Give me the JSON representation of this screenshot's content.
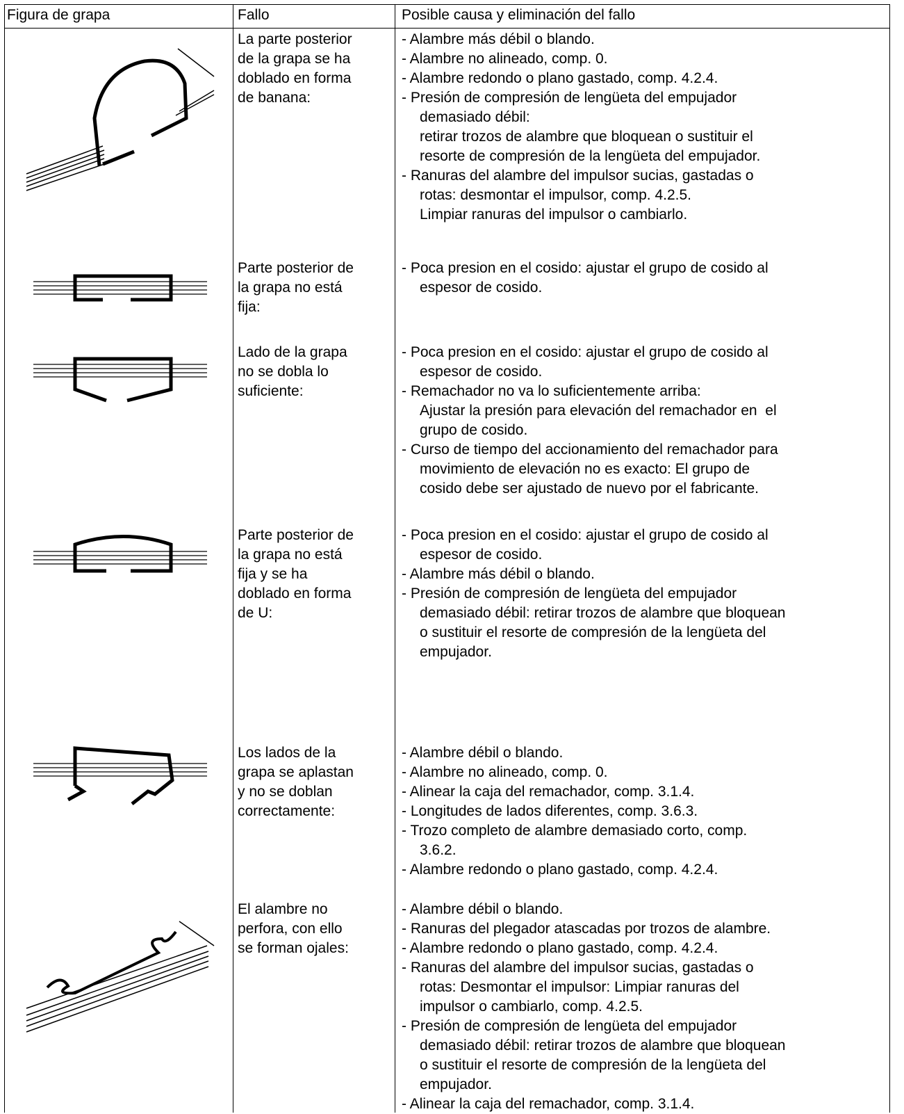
{
  "table": {
    "header": [
      "Figura de grapa",
      "Fallo",
      "Posible causa y eliminación del fallo"
    ],
    "rows": [
      {
        "fault": [
          "La parte posterior",
          "de la grapa se ha",
          "doblado en forma",
          "de banana:"
        ],
        "causes": [
          "- Alambre más débil o blando.",
          "- Alambre no alineado, comp. 0.",
          "- Alambre redondo o plano gastado, comp. 4.2.4.",
          "- Presión de compresión de lengüeta del empujador",
          "demasiado débil:",
          "retirar trozos de alambre que bloquean o sustituir el",
          "resorte de compresión de la lengüeta del empujador.",
          "- Ranuras del alambre del impulsor sucias, gastadas o",
          "rotas: desmontar el impulsor, comp. 4.2.5.",
          "Limpiar ranuras del impulsor o cambiarlo."
        ]
      },
      {
        "fault": [
          "Parte posterior de",
          "la grapa no está",
          "fija:"
        ],
        "causes": [
          "- Poca presion en el cosido: ajustar el grupo de cosido al",
          "espesor de cosido."
        ]
      },
      {
        "fault": [
          "Lado de la grapa",
          "no se dobla lo",
          "suficiente:"
        ],
        "causes": [
          "- Poca presion en el cosido: ajustar el grupo de cosido al",
          "espesor de cosido.",
          "- Remachador no va lo suficientemente arriba:",
          "Ajustar la presión para elevación del remachador en  el",
          "grupo de cosido.",
          "- Curso de tiempo del accionamiento del remachador para",
          "movimiento de elevación no es exacto: El grupo de",
          "cosido debe ser ajustado de nuevo por el fabricante."
        ]
      },
      {
        "fault": [
          "Parte posterior de",
          "la grapa no está",
          "fija y se ha",
          "doblado en forma",
          "de U:"
        ],
        "causes": [
          "- Poca presion en el cosido: ajustar el grupo de cosido al",
          "espesor de cosido.",
          "- Alambre más débil o blando.",
          "- Presión de compresión de lengüeta del empujador",
          "demasiado débil: retirar trozos de alambre que bloquean",
          "o sustituir el resorte de compresión de la lengüeta del",
          "empujador."
        ]
      },
      {
        "fault": [
          "Los lados de la",
          "grapa se aplastan",
          "y no se doblan",
          "correctamente:"
        ],
        "causes": [
          "- Alambre débil o blando.",
          "- Alambre no alineado, comp. 0.",
          "- Alinear la caja del remachador, comp. 3.1.4.",
          "- Longitudes de lados diferentes, comp. 3.6.3.",
          "- Trozo completo de alambre demasiado corto, comp.",
          "3.6.2.",
          "- Alambre redondo o plano gastado, comp. 4.2.4."
        ]
      },
      {
        "fault": [
          "El alambre no",
          "perfora, con ello",
          "se forman ojales:"
        ],
        "causes": [
          "- Alambre débil o blando.",
          "- Ranuras del plegador atascadas por trozos de alambre.",
          "- Alambre redondo o plano gastado, comp. 4.2.4.",
          "- Ranuras del alambre del impulsor sucias, gastadas o",
          "rotas: Desmontar el impulsor: Limpiar ranuras del",
          "impulsor o cambiarlo, comp. 4.2.5.",
          "- Presión de compresión de lengüeta del empujador",
          "demasiado débil: retirar trozos de alambre que bloquean",
          "o sustituir el resorte de compresión de la lengüeta del",
          "empujador.",
          "- Alinear la caja del remachador, comp. 3.1.4."
        ]
      }
    ]
  }
}
